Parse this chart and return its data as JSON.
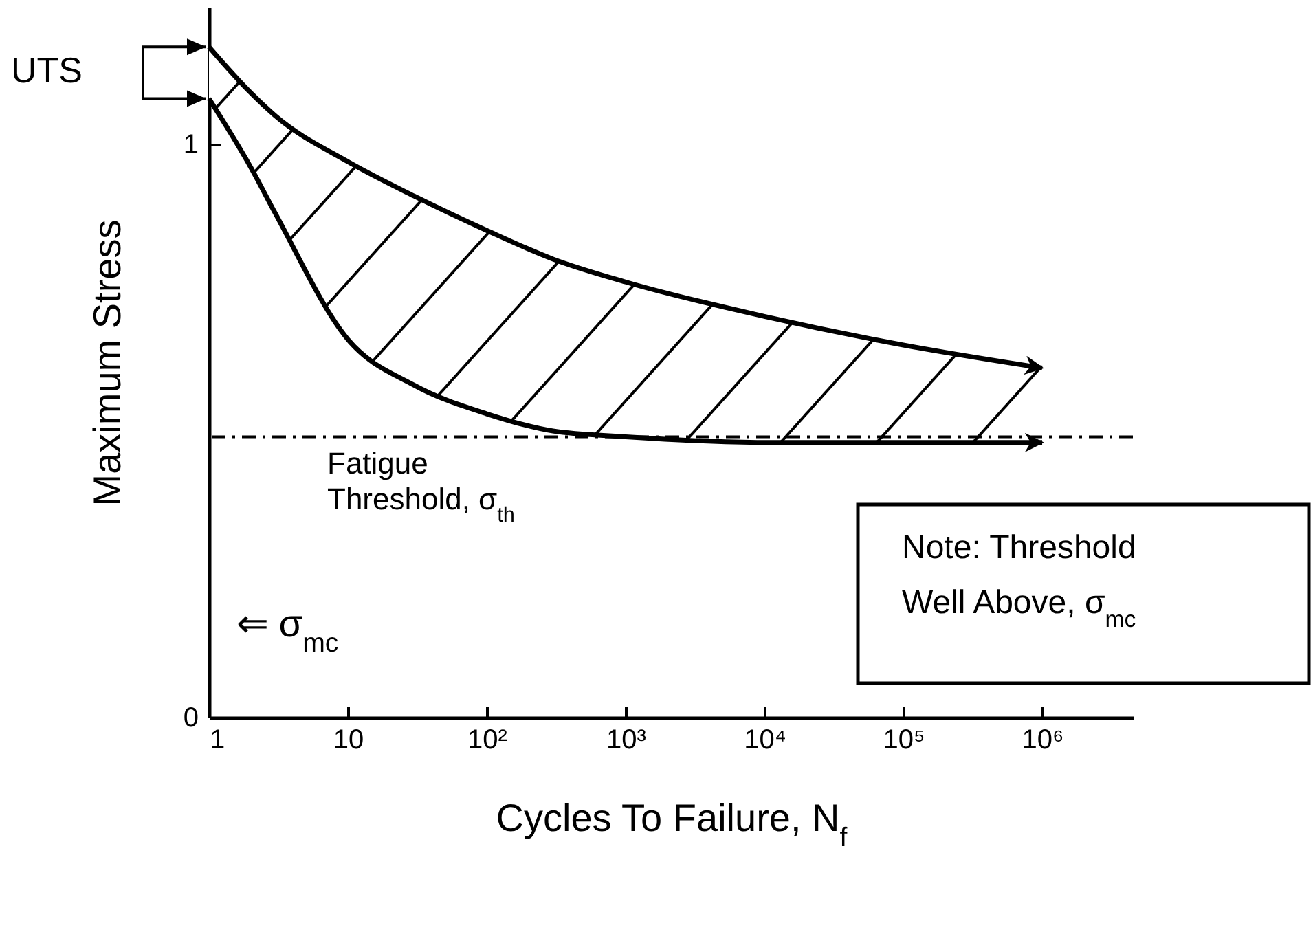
{
  "chart_data": {
    "type": "line",
    "xlabel": "Cycles To Failure,  N$_{f}$",
    "ylabel": "Maximum Stress",
    "x": [
      1,
      2,
      3,
      10,
      30,
      100,
      300,
      1000,
      10000,
      100000,
      1000000
    ],
    "series": [
      {
        "color": "#000000",
        "values": [
          1.17,
          1.09,
          1.05,
          0.97,
          0.91,
          0.85,
          0.8,
          0.76,
          0.7,
          0.65,
          0.61
        ]
      },
      {
        "color": "#000000",
        "values": [
          1.08,
          0.96,
          0.88,
          0.66,
          0.58,
          0.53,
          0.5,
          0.49,
          0.48,
          0.48,
          0.48
        ]
      }
    ],
    "log": "x",
    "xlim": [
      1,
      4500000
    ],
    "xticks": [
      1,
      10,
      {
        "value": 100,
        "label": "10²"
      },
      {
        "value": 1000,
        "label": "10³"
      },
      {
        "value": 10000,
        "label": "10⁴"
      },
      {
        "value": 100000,
        "label": "10⁵"
      },
      {
        "value": 1000000,
        "label": "10⁶"
      }
    ],
    "ylim": [
      0,
      1.24
    ],
    "yticks": [
      0,
      1
    ],
    "ref_lines": [
      {
        "axis": "y",
        "value": 0.49,
        "label": "Fatigue\nThreshold, σ$_{th}$",
        "line_style": "dashed",
        "color": "#000000"
      }
    ],
    "annotations": [
      "UTS",
      "⇐ σ$_{mc}$",
      "Note: Threshold\nWell Above, σ$_{mc}$"
    ]
  }
}
